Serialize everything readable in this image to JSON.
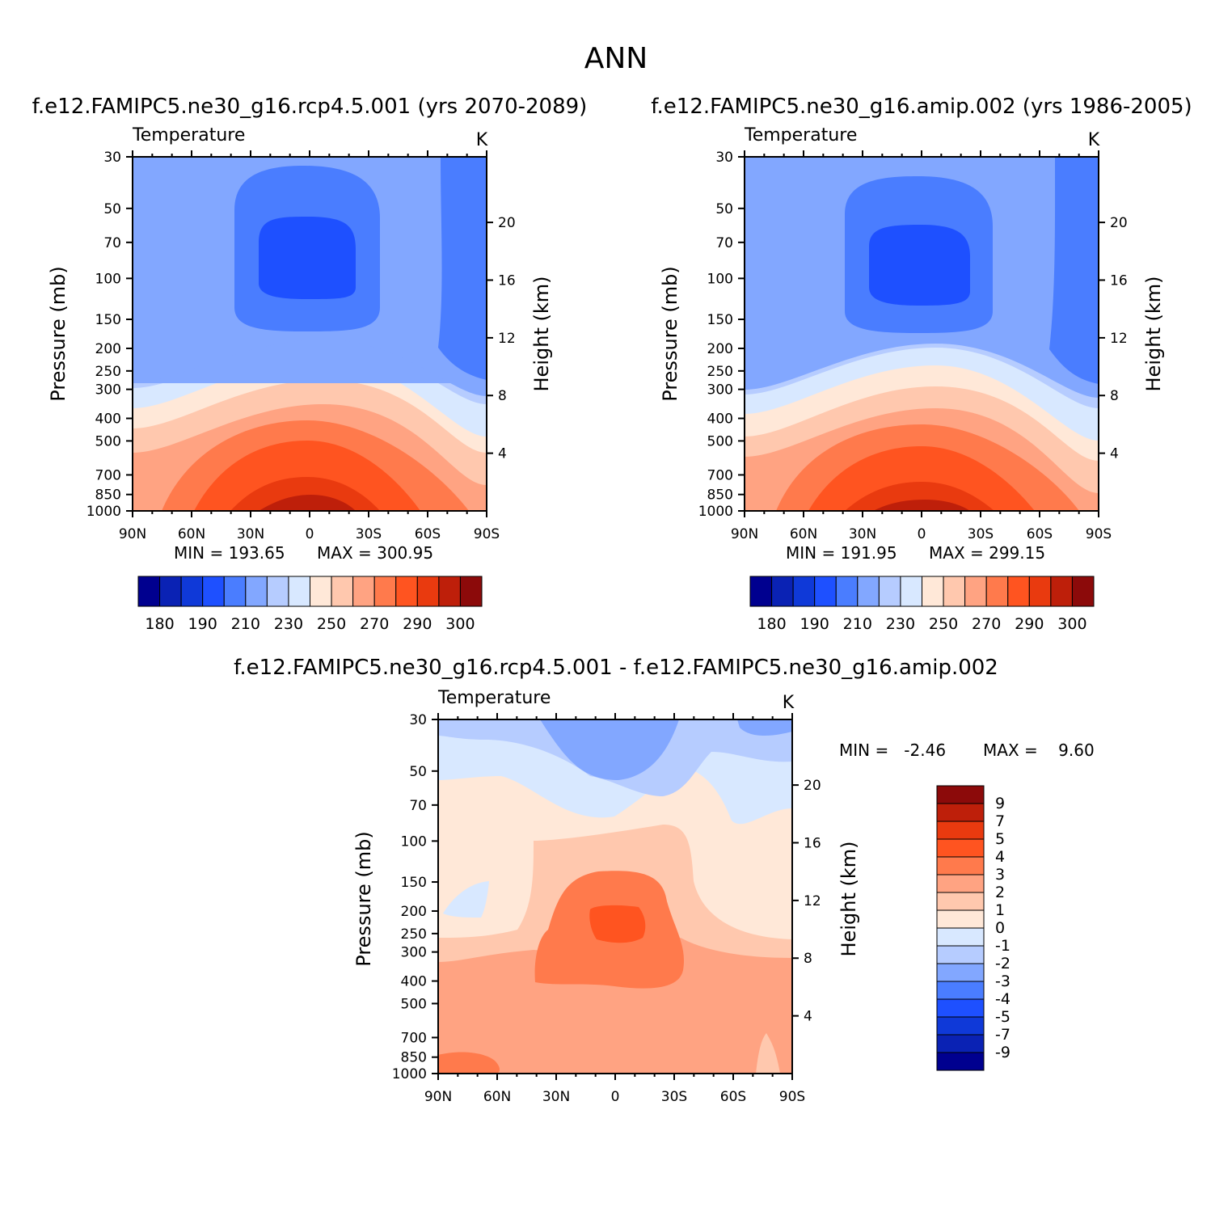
{
  "page": {
    "title": "ANN"
  },
  "palettes": {
    "absolute": [
      "#00008f",
      "#0a22b4",
      "#0f39d8",
      "#1e50ff",
      "#4a7dff",
      "#82a7ff",
      "#b6ccff",
      "#d8e8ff",
      "#ffe8d8",
      "#ffc8ae",
      "#ffa382",
      "#ff7a4c",
      "#ff5420",
      "#e93a0f",
      "#be1f0a",
      "#8c0a0a"
    ],
    "diff": [
      "#00008f",
      "#0a22b4",
      "#0f39d8",
      "#1e50ff",
      "#4a7dff",
      "#82a7ff",
      "#b6ccff",
      "#d8e8ff",
      "#ffe8d8",
      "#ffc8ae",
      "#ffa382",
      "#ff7a4c",
      "#ff5420",
      "#e93a0f",
      "#be1f0a",
      "#8c0a0a"
    ]
  },
  "chart_data": [
    {
      "type": "heatmap",
      "panel_title": "f.e12.FAMIPC5.ne30_g16.rcp4.5.001 (yrs 2070-2089)",
      "variable": "Temperature",
      "units": "K",
      "ylabel": "Pressure (mb)",
      "y2label": "Height (km)",
      "x_ticks": [
        "90N",
        "60N",
        "30N",
        "0",
        "30S",
        "60S",
        "90S"
      ],
      "y_ticks": [
        "30",
        "50",
        "70",
        "100",
        "150",
        "200",
        "250",
        "300",
        "400",
        "500",
        "700",
        "850",
        "1000"
      ],
      "y2_ticks": [
        "20",
        "16",
        "12",
        "8",
        "4"
      ],
      "min_label": "MIN = 193.65",
      "max_label": "MAX = 300.95",
      "min": 193.65,
      "max": 300.95,
      "colorbar_labels": [
        "180",
        "190",
        "210",
        "230",
        "250",
        "270",
        "290",
        "300"
      ],
      "levels": [
        180,
        185,
        190,
        200,
        210,
        220,
        230,
        240,
        250,
        260,
        270,
        280,
        290,
        295,
        300
      ]
    },
    {
      "type": "heatmap",
      "panel_title": "f.e12.FAMIPC5.ne30_g16.amip.002 (yrs 1986-2005)",
      "variable": "Temperature",
      "units": "K",
      "ylabel": "Pressure (mb)",
      "y2label": "Height (km)",
      "x_ticks": [
        "90N",
        "60N",
        "30N",
        "0",
        "30S",
        "60S",
        "90S"
      ],
      "y_ticks": [
        "30",
        "50",
        "70",
        "100",
        "150",
        "200",
        "250",
        "300",
        "400",
        "500",
        "700",
        "850",
        "1000"
      ],
      "y2_ticks": [
        "20",
        "16",
        "12",
        "8",
        "4"
      ],
      "min_label": "MIN = 191.95",
      "max_label": "MAX = 299.15",
      "min": 191.95,
      "max": 299.15,
      "colorbar_labels": [
        "180",
        "190",
        "210",
        "230",
        "250",
        "270",
        "290",
        "300"
      ],
      "levels": [
        180,
        185,
        190,
        200,
        210,
        220,
        230,
        240,
        250,
        260,
        270,
        280,
        290,
        295,
        300
      ]
    },
    {
      "type": "heatmap",
      "panel_title": "f.e12.FAMIPC5.ne30_g16.rcp4.5.001 - f.e12.FAMIPC5.ne30_g16.amip.002",
      "variable": "Temperature",
      "units": "K",
      "ylabel": "Pressure (mb)",
      "y2label": "Height (km)",
      "x_ticks": [
        "90N",
        "60N",
        "30N",
        "0",
        "30S",
        "60S",
        "90S"
      ],
      "y_ticks": [
        "30",
        "50",
        "70",
        "100",
        "150",
        "200",
        "250",
        "300",
        "400",
        "500",
        "700",
        "850",
        "1000"
      ],
      "y2_ticks": [
        "20",
        "16",
        "12",
        "8",
        "4"
      ],
      "min_label": "MIN =   -2.46",
      "max_label": "MAX =    9.60",
      "min": -2.46,
      "max": 9.6,
      "colorbar_labels": [
        "9",
        "7",
        "5",
        "4",
        "3",
        "2",
        "1",
        "0",
        "-1",
        "-2",
        "-3",
        "-4",
        "-5",
        "-7",
        "-9"
      ],
      "levels": [
        -9,
        -7,
        -5,
        -4,
        -3,
        -2,
        -1,
        0,
        1,
        2,
        3,
        4,
        5,
        7,
        9
      ]
    }
  ]
}
